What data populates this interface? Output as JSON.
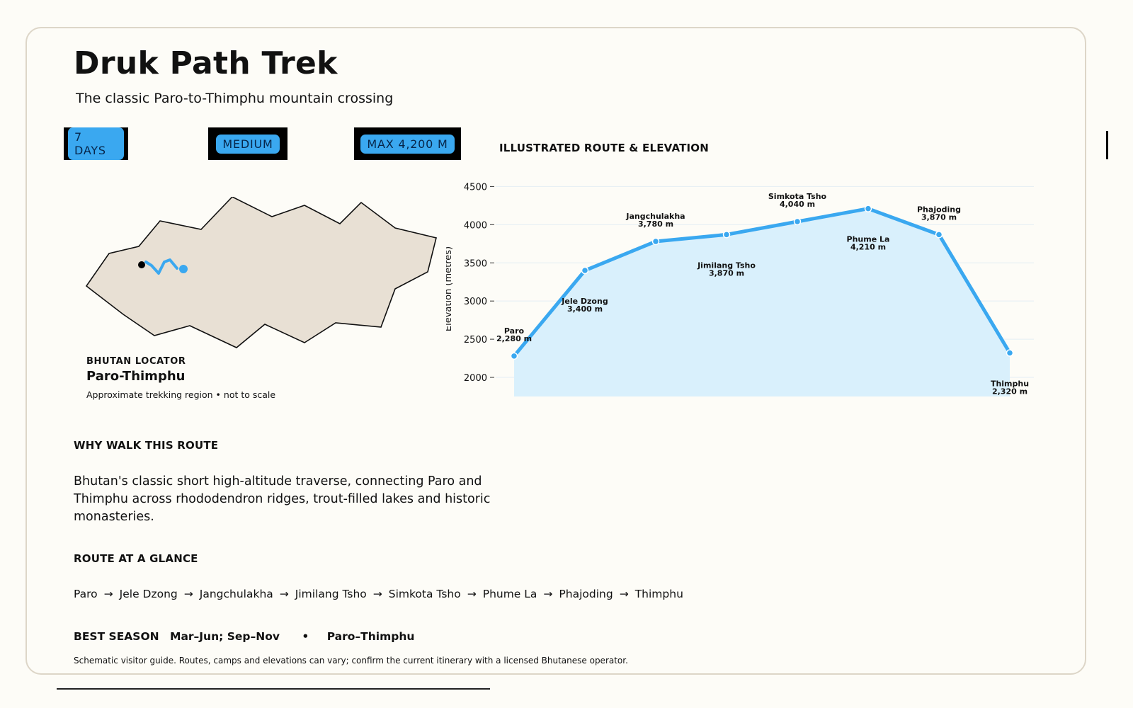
{
  "header": {
    "title": "Druk Path Trek",
    "subtitle": "The classic Paro-to-Thimphu mountain crossing"
  },
  "chips": [
    "7 DAYS",
    "MEDIUM",
    "MAX 4,200 M"
  ],
  "colors": {
    "accent": "#3aa8f0",
    "background": "#fdfcf7",
    "border": "#ddd6c8",
    "map_fill": "#e8e0d4",
    "area_fill": "#d9f0fc"
  },
  "locator": {
    "caption": "BHUTAN LOCATOR",
    "name": "Paro-Thimphu",
    "note": "Approximate trekking region • not to scale"
  },
  "chart_section_title": "ILLUSTRATED ROUTE & ELEVATION",
  "chart_data": {
    "type": "area",
    "title": "",
    "xlabel": "",
    "ylabel": "Elevation (metres)",
    "ylim": [
      1750,
      4550
    ],
    "yticks": [
      2000,
      2500,
      3000,
      3500,
      4000,
      4500
    ],
    "grid": true,
    "categories": [
      "Paro",
      "Jele Dzong",
      "Jangchulakha",
      "Jimilang Tsho",
      "Simkota Tsho",
      "Phume La",
      "Phajoding",
      "Thimphu"
    ],
    "values": [
      2280,
      3400,
      3780,
      3870,
      4040,
      4210,
      3870,
      2320
    ],
    "data_labels": [
      "2,280 m",
      "3,400 m",
      "3,780 m",
      "3,870 m",
      "4,040 m",
      "4,210 m",
      "3,870 m",
      "2,320 m"
    ]
  },
  "why": {
    "heading": "WHY WALK THIS ROUTE",
    "text": "Bhutan's classic short high-altitude traverse, connecting Paro and Thimphu across rhododendron ridges, trout-filled lakes and historic monasteries."
  },
  "glance": {
    "heading": "ROUTE AT A GLANCE",
    "arrow": "→",
    "stops": [
      "Paro",
      "Jele Dzong",
      "Jangchulakha",
      "Jimilang Tsho",
      "Simkota Tsho",
      "Phume La",
      "Phajoding",
      "Thimphu"
    ]
  },
  "season": {
    "label": "BEST SEASON",
    "value": "Mar–Jun; Sep–Nov",
    "separator": "•",
    "route": "Paro–Thimphu"
  },
  "disclaimer": "Schematic visitor guide. Routes, camps and elevations can vary; confirm the current itinerary with a licensed Bhutanese operator."
}
